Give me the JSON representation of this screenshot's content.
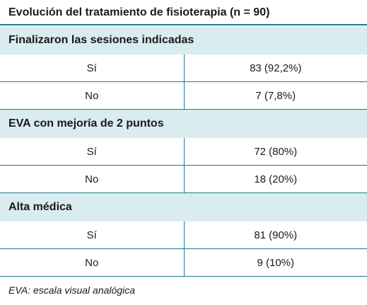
{
  "title": "Evolución del tratamiento de fisioterapia (n = 90)",
  "sections": [
    {
      "heading": "Finalizaron las sesiones indicadas",
      "rows": [
        {
          "label": "Sí",
          "value": "83 (92,2%)"
        },
        {
          "label": "No",
          "value": "7 (7,8%)"
        }
      ]
    },
    {
      "heading": "EVA con mejoría de 2 puntos",
      "rows": [
        {
          "label": "Sí",
          "value": "72 (80%)"
        },
        {
          "label": "No",
          "value": "18 (20%)"
        }
      ]
    },
    {
      "heading": "Alta médica",
      "rows": [
        {
          "label": "Sí",
          "value": "81 (90%)"
        },
        {
          "label": "No",
          "value": "9 (10%)"
        }
      ]
    }
  ],
  "footnote": "EVA: escala visual analógica",
  "colors": {
    "accent": "#1f7a8c",
    "section_bg": "#d9ecef"
  }
}
